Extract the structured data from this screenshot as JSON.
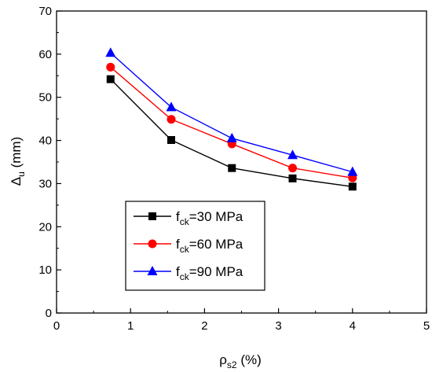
{
  "chart_data": {
    "type": "line",
    "title": "",
    "xlabel": {
      "main": "ρ",
      "sub": "s2",
      "rest": " (%)"
    },
    "ylabel": {
      "main": "Δ",
      "sub": "u",
      "rest": " (mm)"
    },
    "xlim": [
      0,
      5
    ],
    "ylim": [
      0,
      70
    ],
    "xticks": [
      0,
      1,
      2,
      3,
      4,
      5
    ],
    "yticks": [
      0,
      10,
      20,
      30,
      40,
      50,
      60,
      70
    ],
    "grid": false,
    "legend_position": "bottom-left",
    "series": [
      {
        "name": {
          "main": "f",
          "sub": "ck",
          "rest": "=30 MPa"
        },
        "color": "#000000",
        "marker": "square",
        "x": [
          0.73,
          1.55,
          2.37,
          3.19,
          4.0
        ],
        "y": [
          54.2,
          40.1,
          33.6,
          31.2,
          29.3
        ]
      },
      {
        "name": {
          "main": "f",
          "sub": "ck",
          "rest": "=60 MPa"
        },
        "color": "#ff0000",
        "marker": "circle",
        "x": [
          0.73,
          1.55,
          2.37,
          3.19,
          4.0
        ],
        "y": [
          57.0,
          44.9,
          39.2,
          33.6,
          31.3
        ]
      },
      {
        "name": {
          "main": "f",
          "sub": "ck",
          "rest": "=90 MPa"
        },
        "color": "#0000ff",
        "marker": "triangle",
        "x": [
          0.73,
          1.55,
          2.37,
          3.19,
          4.0
        ],
        "y": [
          60.3,
          47.7,
          40.5,
          36.6,
          32.7
        ]
      }
    ]
  }
}
